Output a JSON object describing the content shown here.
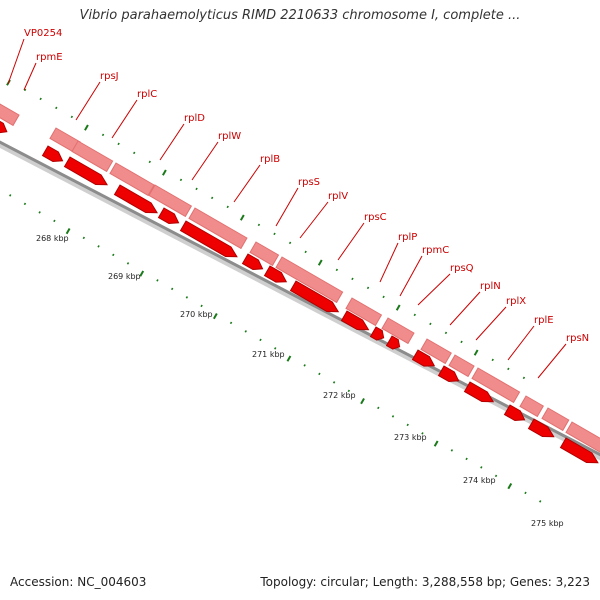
{
  "title": "Vibrio parahaemolyticus RIMD 2210633 chromosome I, complete ...",
  "footer": {
    "accession": "Accession: NC_004603",
    "summary": "Topology: circular; Length: 3,288,558 bp; Genes: 3,223"
  },
  "colors": {
    "gene_dark": "#ee0000",
    "gene_light": "#f08c8c",
    "backbone": "#8c8c8c",
    "tick": "#1a7a1a",
    "label": "#cc0000"
  },
  "kbp_ticks": [
    {
      "kbp": 268,
      "label": "268 kbp"
    },
    {
      "kbp": 269,
      "label": "269 kbp"
    },
    {
      "kbp": 270,
      "label": "270 kbp"
    },
    {
      "kbp": 271,
      "label": "271 kbp"
    },
    {
      "kbp": 272,
      "label": "272 kbp"
    },
    {
      "kbp": 273,
      "label": "273 kbp"
    },
    {
      "kbp": 274,
      "label": "274 kbp"
    },
    {
      "kbp": 275,
      "label": "275 kbp"
    }
  ],
  "gene_labels": [
    "VP0254",
    "rpmE",
    "rpsJ",
    "rplC",
    "rplD",
    "rplW",
    "rplB",
    "rpsS",
    "rplV",
    "rpsC",
    "rplP",
    "rpmC",
    "rpsQ",
    "rplN",
    "rplX",
    "rplE",
    "rpsN"
  ]
}
